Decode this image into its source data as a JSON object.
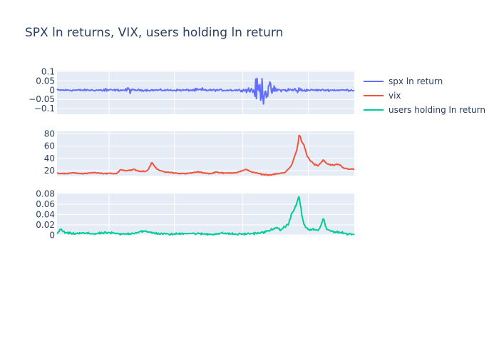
{
  "chart_data": {
    "type": "line",
    "title": "SPX ln returns, VIX, users holding ln return",
    "legend_position": "top-right",
    "grid": true,
    "x": {
      "ticks_shown": false,
      "range_note": "shared time axis, no tick labels printed"
    },
    "panels": [
      {
        "series_name": "spx ln return",
        "color": "#636efa",
        "ylim": [
          -0.13,
          0.105
        ],
        "yticks": [
          0.1,
          0.05,
          0,
          -0.05,
          -0.1
        ],
        "ytick_labels": [
          "0.1",
          "0.05",
          "0",
          "−0.05",
          "−0.1"
        ],
        "baseline": 0.0,
        "noise": 0.004,
        "events": [
          {
            "at": 0.19,
            "amp": 0.02,
            "width": 0.01
          },
          {
            "at": 0.28,
            "amp": 0.03,
            "width": 0.008
          },
          {
            "at": 0.56,
            "amp": 0.012,
            "width": 0.02
          },
          {
            "at": 0.8,
            "amp": 0.105,
            "width": 0.04
          },
          {
            "at": 0.93,
            "amp": 0.02,
            "width": 0.03
          }
        ]
      },
      {
        "series_name": "vix",
        "color": "#ef553b",
        "ylim": [
          12,
          84
        ],
        "yticks": [
          80,
          60,
          40,
          20
        ],
        "ytick_labels": [
          "80",
          "60",
          "40",
          "20"
        ],
        "keypoints": [
          [
            0.0,
            16
          ],
          [
            0.04,
            15
          ],
          [
            0.06,
            17
          ],
          [
            0.1,
            15
          ],
          [
            0.15,
            17
          ],
          [
            0.18,
            15
          ],
          [
            0.2,
            16
          ],
          [
            0.23,
            15
          ],
          [
            0.25,
            22
          ],
          [
            0.27,
            20
          ],
          [
            0.3,
            22
          ],
          [
            0.32,
            19
          ],
          [
            0.345,
            19
          ],
          [
            0.355,
            21
          ],
          [
            0.37,
            34
          ],
          [
            0.39,
            22
          ],
          [
            0.42,
            18
          ],
          [
            0.47,
            16
          ],
          [
            0.5,
            15
          ],
          [
            0.55,
            18
          ],
          [
            0.6,
            15
          ],
          [
            0.62,
            18
          ],
          [
            0.65,
            16
          ],
          [
            0.7,
            17
          ],
          [
            0.74,
            22
          ],
          [
            0.76,
            18
          ],
          [
            0.78,
            16
          ],
          [
            0.8,
            14
          ],
          [
            0.83,
            13
          ],
          [
            0.86,
            15
          ],
          [
            0.89,
            17
          ],
          [
            0.9,
            22
          ],
          [
            0.915,
            28
          ],
          [
            0.925,
            42
          ],
          [
            0.935,
            52
          ],
          [
            0.94,
            62
          ],
          [
            0.945,
            81
          ],
          [
            0.955,
            66
          ],
          [
            0.965,
            60
          ],
          [
            0.975,
            45
          ],
          [
            0.985,
            38
          ],
          [
            0.995,
            34
          ],
          [
            1.005,
            30
          ],
          [
            1.02,
            28
          ],
          [
            1.04,
            38
          ],
          [
            1.05,
            32
          ],
          [
            1.07,
            29
          ],
          [
            1.1,
            30
          ],
          [
            1.12,
            24
          ],
          [
            1.16,
            22
          ]
        ],
        "noise": 1.0
      },
      {
        "series_name": "users holding ln return",
        "color": "#00cc96",
        "ylim": [
          -0.002,
          0.082
        ],
        "yticks": [
          0.08,
          0.06,
          0.04,
          0.02,
          0
        ],
        "ytick_labels": [
          "0.08",
          "0.06",
          "0.04",
          "0.02",
          "0"
        ],
        "keypoints": [
          [
            0.0,
            0.003
          ],
          [
            0.015,
            0.012
          ],
          [
            0.03,
            0.005
          ],
          [
            0.06,
            0.003
          ],
          [
            0.1,
            0.004
          ],
          [
            0.15,
            0.003
          ],
          [
            0.2,
            0.005
          ],
          [
            0.25,
            0.002
          ],
          [
            0.3,
            0.004
          ],
          [
            0.33,
            0.008
          ],
          [
            0.36,
            0.006
          ],
          [
            0.4,
            0.003
          ],
          [
            0.45,
            0.002
          ],
          [
            0.5,
            0.004
          ],
          [
            0.55,
            0.003
          ],
          [
            0.6,
            0.002
          ],
          [
            0.65,
            0.004
          ],
          [
            0.7,
            0.002
          ],
          [
            0.75,
            0.003
          ],
          [
            0.8,
            0.005
          ],
          [
            0.83,
            0.009
          ],
          [
            0.85,
            0.015
          ],
          [
            0.87,
            0.01
          ],
          [
            0.9,
            0.02
          ],
          [
            0.92,
            0.045
          ],
          [
            0.935,
            0.06
          ],
          [
            0.945,
            0.077
          ],
          [
            0.955,
            0.04
          ],
          [
            0.965,
            0.018
          ],
          [
            0.985,
            0.01
          ],
          [
            1.0,
            0.012
          ],
          [
            1.02,
            0.008
          ],
          [
            1.04,
            0.033
          ],
          [
            1.05,
            0.012
          ],
          [
            1.07,
            0.008
          ],
          [
            1.1,
            0.006
          ],
          [
            1.13,
            0.003
          ],
          [
            1.16,
            0.002
          ]
        ],
        "noise": 0.0025
      }
    ]
  },
  "colors": {
    "plot_bg": "#e5ecf6",
    "grid": "#ffffff",
    "text": "#2a3f5f"
  }
}
